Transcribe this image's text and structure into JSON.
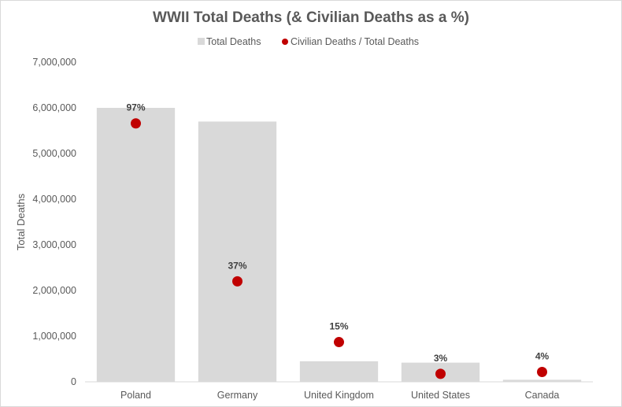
{
  "chart_data": {
    "type": "bar",
    "title": "WWII Total Deaths (& Civilian Deaths as a %)",
    "xlabel": "",
    "ylabel": "Total Deaths",
    "ylim": [
      0,
      7000000
    ],
    "yticks": [
      0,
      1000000,
      2000000,
      3000000,
      4000000,
      5000000,
      6000000,
      7000000
    ],
    "ytick_labels": [
      "0",
      "1,000,000",
      "2,000,000",
      "3,000,000",
      "4,000,000",
      "5,000,000",
      "6,000,000",
      "7,000,000"
    ],
    "grid": false,
    "legend_position": "top-center",
    "categories": [
      "Poland",
      "Germany",
      "United Kingdom",
      "United States",
      "Canada"
    ],
    "series": [
      {
        "name": "Total Deaths",
        "type": "bar",
        "color": "#d9d9d9",
        "values": [
          6000000,
          5700000,
          450000,
          420000,
          45000
        ]
      },
      {
        "name": "Civilian Deaths / Total Deaths",
        "type": "scatter",
        "color": "#c00000",
        "values": [
          5660000,
          2200000,
          870000,
          175000,
          215000
        ],
        "labels": [
          "97%",
          "37%",
          "15%",
          "3%",
          "4%"
        ]
      }
    ]
  }
}
